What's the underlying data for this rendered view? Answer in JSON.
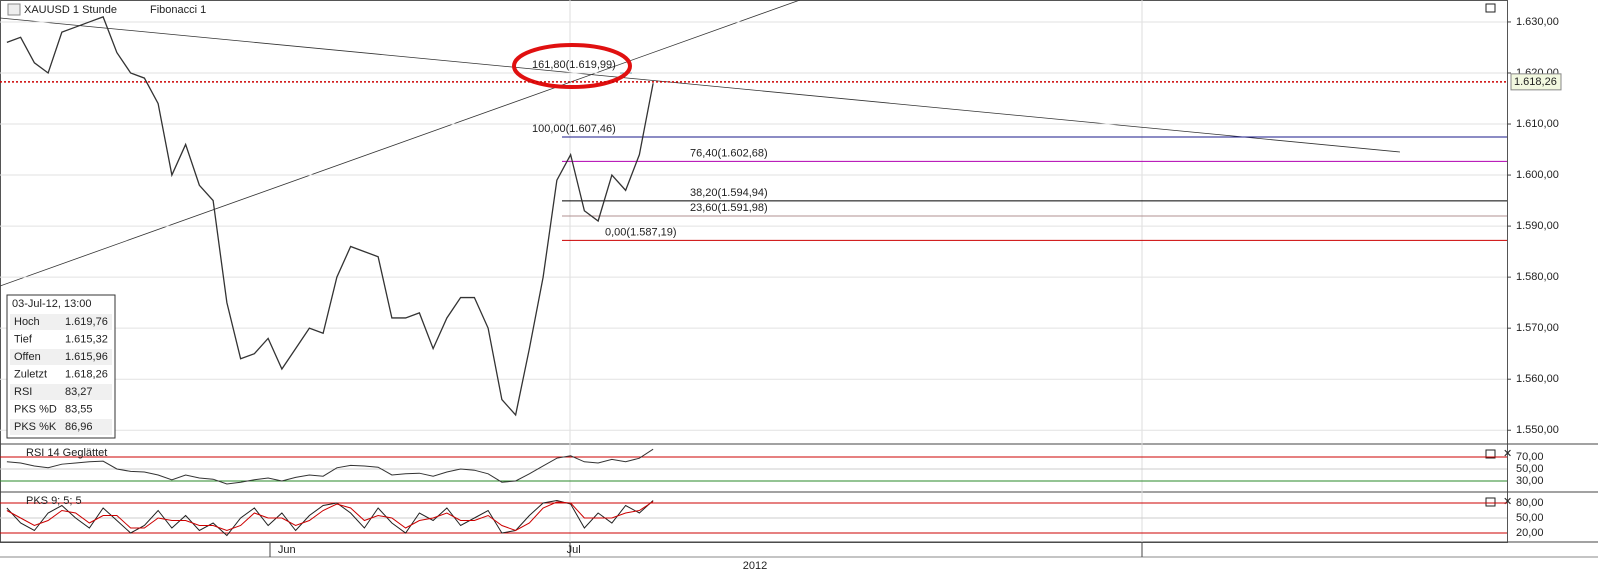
{
  "chart_data": {
    "type": "line",
    "title": "XAUUSD 1 Stunde",
    "subtitle": "Fibonacci 1",
    "categories": [
      null,
      null,
      null,
      null,
      null,
      null,
      null,
      null,
      null,
      null,
      null,
      null,
      null,
      null,
      null,
      null,
      null,
      null,
      null,
      null,
      "Jun",
      null,
      null,
      null,
      null,
      null,
      null,
      null,
      null,
      null,
      null,
      null,
      null,
      null,
      null,
      null,
      null,
      null,
      null,
      null,
      null,
      "Jul",
      null,
      null,
      null,
      null,
      null,
      null
    ],
    "x_label": "2012",
    "series": [
      {
        "name": "XAUUSD",
        "color": "#333333",
        "values": [
          1626,
          1627,
          1622,
          1620,
          1628,
          1629,
          1630,
          1631,
          1624,
          1620,
          1619,
          1614,
          1600,
          1606,
          1598,
          1595,
          1575,
          1564,
          1565,
          1568,
          1562,
          1566,
          1570,
          1569,
          1580,
          1586,
          1585,
          1584,
          1572,
          1572,
          1573,
          1566,
          1572,
          1576,
          1576,
          1570,
          1556,
          1553,
          1566,
          1580,
          1599,
          1604,
          1593,
          1591,
          1600,
          1597,
          1604,
          1618
        ]
      }
    ],
    "ylim": [
      1547.5,
      1634.3
    ],
    "yticks": [
      {
        "value": 1550,
        "label": "1.550,00"
      },
      {
        "value": 1560,
        "label": "1.560,00"
      },
      {
        "value": 1570,
        "label": "1.570,00"
      },
      {
        "value": 1580,
        "label": "1.580,00"
      },
      {
        "value": 1590,
        "label": "1.590,00"
      },
      {
        "value": 1600,
        "label": "1.600,00"
      },
      {
        "value": 1610,
        "label": "1.610,00"
      },
      {
        "value": 1620,
        "label": "1.620,00"
      },
      {
        "value": 1630,
        "label": "1.630,00"
      }
    ],
    "grid": true,
    "last_price": {
      "value": 1618.26,
      "label": "1.618,26",
      "color": "#cc0000"
    },
    "annotations": [
      {
        "label": "161,80(1.619,99)",
        "value": 1619.99,
        "color": "#6a9aa8"
      },
      {
        "label": "100,00(1.607,46)",
        "value": 1607.46,
        "color": "#1a1a8a"
      },
      {
        "label": "76,40(1.602,68)",
        "value": 1602.68,
        "color": "#b000b0"
      },
      {
        "label": "38,20(1.594,94)",
        "value": 1594.94,
        "color": "#000000"
      },
      {
        "label": "23,60(1.591,98)",
        "value": 1591.98,
        "color": "#b09090"
      },
      {
        "label": "0,00(1.587,19)",
        "value": 1587.19,
        "color": "#cc0000"
      }
    ],
    "info_box": {
      "title": "03-Jul-12, 13:00",
      "rows": [
        {
          "label": "Hoch",
          "value": "1.619,76",
          "color": "#222222"
        },
        {
          "label": "Tief",
          "value": "1.615,32",
          "color": "#222222"
        },
        {
          "label": "Offen",
          "value": "1.615,96",
          "color": "#222222"
        },
        {
          "label": "Zuletzt",
          "value": "1.618,26",
          "color": "#2a8a2a"
        },
        {
          "label": "RSI",
          "value": "83,27",
          "color": "#222222"
        },
        {
          "label": "PKS %D",
          "value": "83,55",
          "color": "#cc0000"
        },
        {
          "label": "PKS %K",
          "value": "86,96",
          "color": "#222222"
        }
      ]
    },
    "panels": [
      {
        "title": "RSI 14 Geglättet",
        "ylim": [
          15,
          88.3
        ],
        "yticks": [
          {
            "value": 70,
            "label": "70,00",
            "color": "#cc0000"
          },
          {
            "value": 50,
            "label": "50,00",
            "color": "#222222"
          },
          {
            "value": 30,
            "label": "30,00",
            "color": "#2a8a2a"
          }
        ],
        "series": [
          {
            "name": "RSI",
            "color": "#333333",
            "values": [
              62,
              60,
              55,
              52,
              58,
              60,
              62,
              63,
              50,
              46,
              45,
              40,
              32,
              40,
              35,
              33,
              25,
              28,
              32,
              35,
              30,
              36,
              40,
              38,
              52,
              56,
              55,
              53,
              40,
              42,
              43,
              38,
              45,
              50,
              48,
              42,
              28,
              30,
              42,
              55,
              68,
              72,
              62,
              60,
              66,
              62,
              68,
              83
            ]
          }
        ]
      },
      {
        "title": "PKS 9; 5; 5",
        "ylim": [
          4,
          98
        ],
        "yticks": [
          {
            "value": 80,
            "label": "80,00",
            "color": "#cc0000"
          },
          {
            "value": 50,
            "label": "50,00",
            "color": "#222222"
          },
          {
            "value": 20,
            "label": "20,00",
            "color": "#cc0000"
          }
        ],
        "series": [
          {
            "name": "PKS %K",
            "color": "#222222",
            "values": [
              70,
              40,
              25,
              60,
              75,
              50,
              30,
              70,
              45,
              20,
              35,
              65,
              30,
              55,
              25,
              40,
              15,
              50,
              70,
              35,
              60,
              25,
              55,
              75,
              80,
              60,
              30,
              70,
              40,
              20,
              60,
              45,
              70,
              35,
              50,
              65,
              20,
              25,
              55,
              80,
              85,
              78,
              30,
              60,
              40,
              75,
              60,
              85
            ]
          },
          {
            "name": "PKS %D",
            "color": "#cc0000",
            "values": [
              65,
              50,
              35,
              45,
              65,
              60,
              40,
              55,
              55,
              30,
              30,
              50,
              45,
              45,
              35,
              35,
              25,
              35,
              60,
              50,
              50,
              35,
              45,
              65,
              78,
              70,
              45,
              55,
              50,
              30,
              45,
              50,
              60,
              45,
              45,
              55,
              35,
              25,
              40,
              70,
              82,
              80,
              50,
              50,
              50,
              60,
              65,
              83
            ]
          }
        ]
      }
    ]
  }
}
